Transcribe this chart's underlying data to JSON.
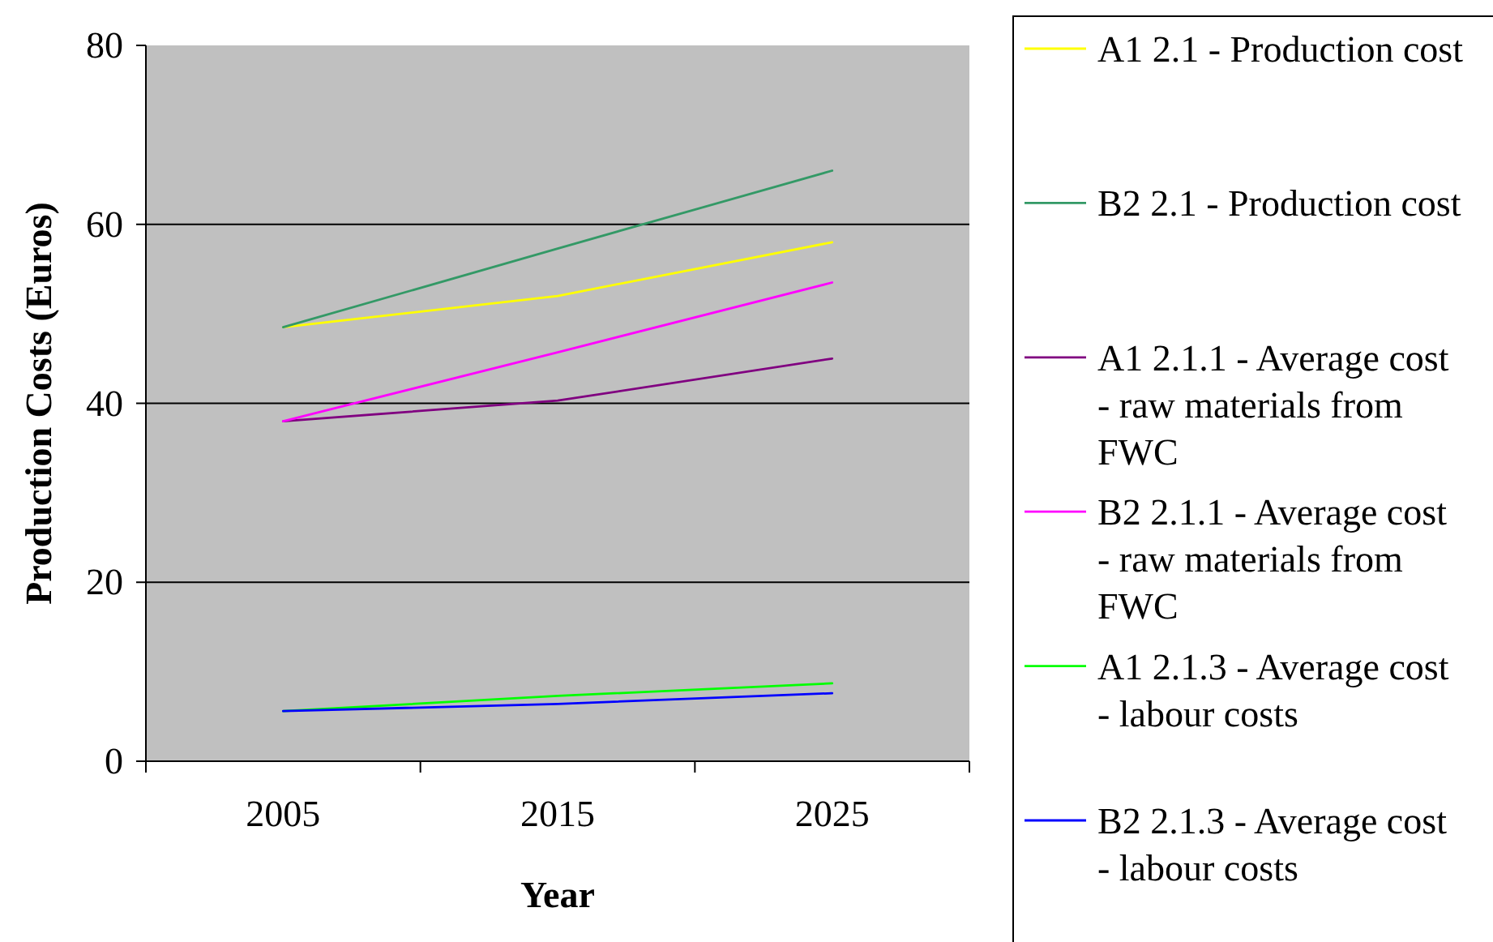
{
  "chart_data": {
    "type": "line",
    "xlabel": "Year",
    "ylabel": "Production Costs (Euros)",
    "categories": [
      "2005",
      "2015",
      "2025"
    ],
    "ylim": [
      0,
      80
    ],
    "yticks": [
      0,
      20,
      40,
      60,
      80
    ],
    "grid": "y",
    "legend": "right",
    "marker": "none",
    "series": [
      {
        "name": "A1 2.1 - Production cost",
        "color": "#ffff00",
        "values": [
          48.5,
          52,
          58
        ]
      },
      {
        "name": "B2 2.1 - Production cost",
        "color": "#339966",
        "values": [
          48.5,
          57.3,
          66
        ]
      },
      {
        "name": "A1 2.1.1 - Average cost - raw materials from FWC",
        "color": "#800080",
        "values": [
          38,
          40.3,
          45
        ]
      },
      {
        "name": "B2 2.1.1 - Average cost - raw materials from FWC",
        "color": "#ff00ff",
        "values": [
          38,
          45.7,
          53.5
        ]
      },
      {
        "name": "A1 2.1.3 - Average cost - labour costs",
        "color": "#00ff00",
        "values": [
          5.6,
          7.3,
          8.7
        ]
      },
      {
        "name": "B2 2.1.3 - Average cost - labour costs",
        "color": "#0000ff",
        "values": [
          5.6,
          6.4,
          7.6
        ]
      }
    ]
  }
}
